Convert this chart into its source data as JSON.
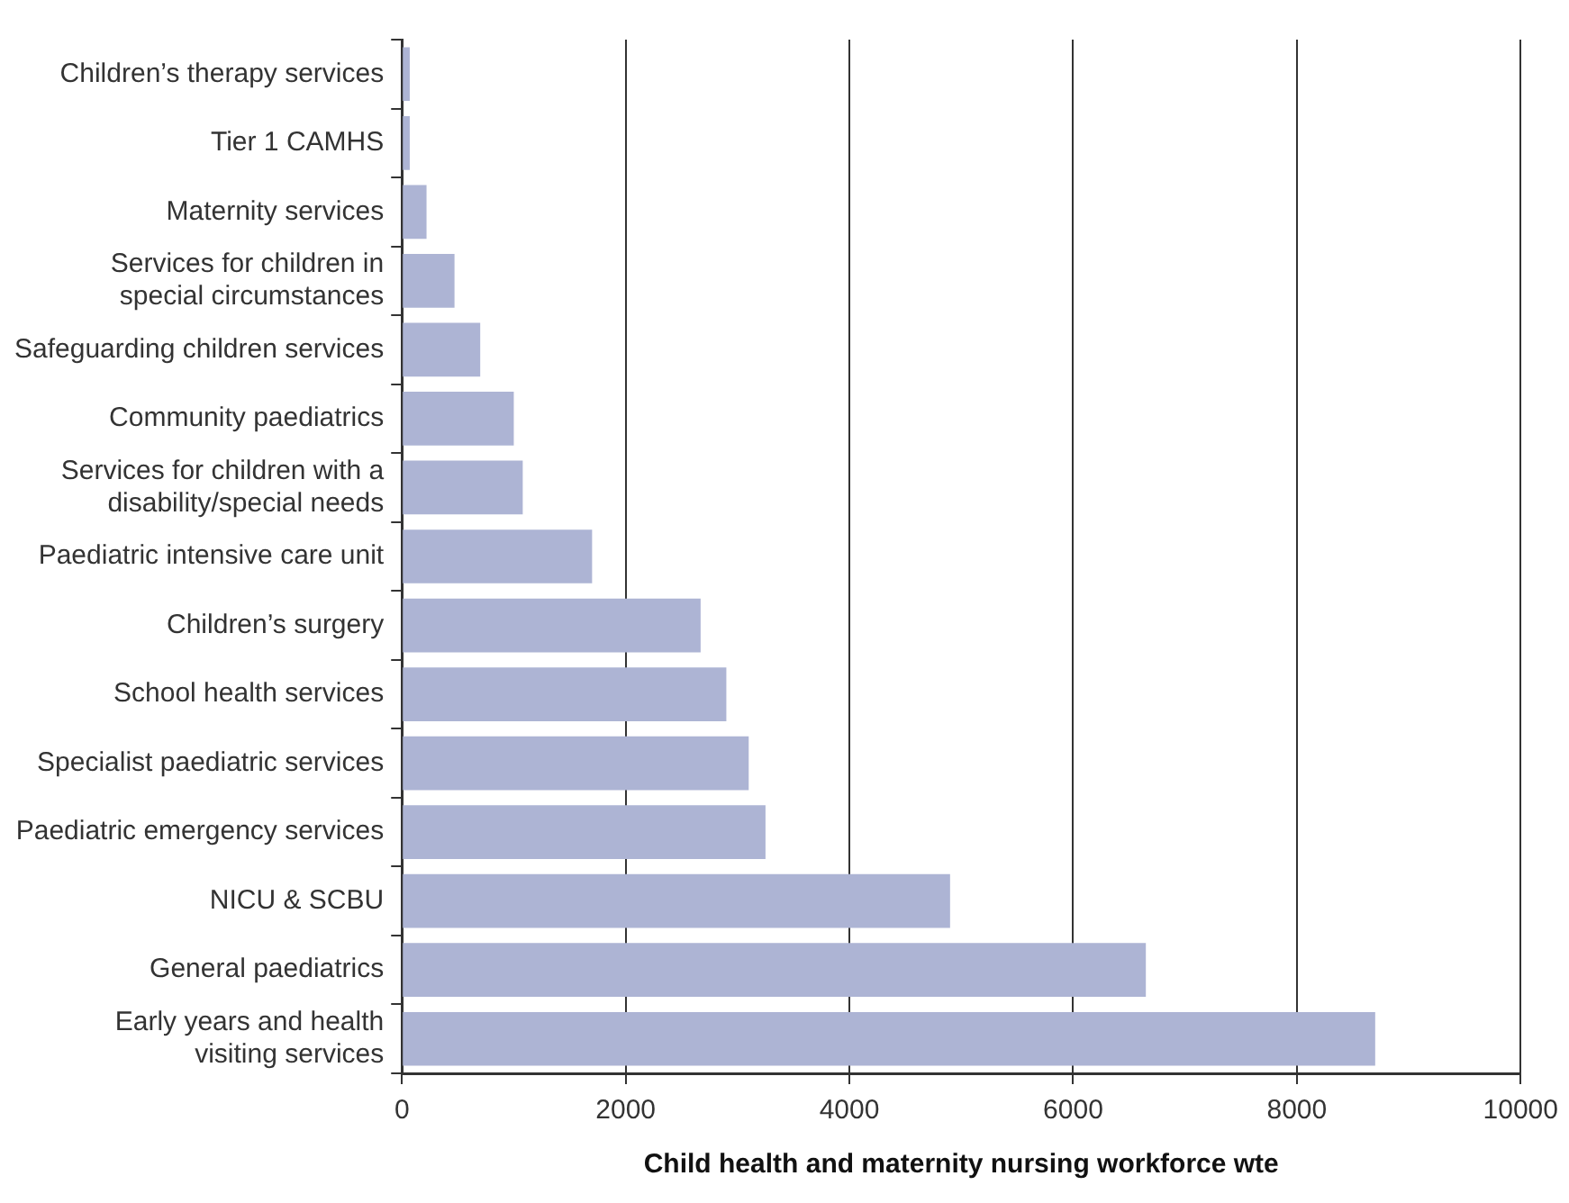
{
  "chart_data": {
    "type": "bar",
    "orientation": "horizontal",
    "xlabel": "Child health and maternity nursing workforce wte",
    "categories": [
      "Children’s therapy services",
      "Tier 1 CAMHS",
      "Maternity services",
      "Services for children in\nspecial circumstances",
      "Safeguarding children services",
      "Community paediatrics",
      "Services for children with a\ndisability/special needs",
      "Paediatric intensive care unit",
      "Children’s surgery",
      "School health services",
      "Specialist paediatric services",
      "Paediatric emergency services",
      "NICU & SCBU",
      "General paediatrics",
      "Early years and health\nvisiting services"
    ],
    "values": [
      70,
      70,
      220,
      470,
      700,
      1000,
      1080,
      1700,
      2670,
      2900,
      3100,
      3250,
      4900,
      6650,
      8700
    ],
    "color": "#adb4d4",
    "xlim": [
      0,
      10000
    ],
    "xticks": [
      0,
      2000,
      4000,
      6000,
      8000,
      10000
    ],
    "grid": "x",
    "legend": false
  }
}
